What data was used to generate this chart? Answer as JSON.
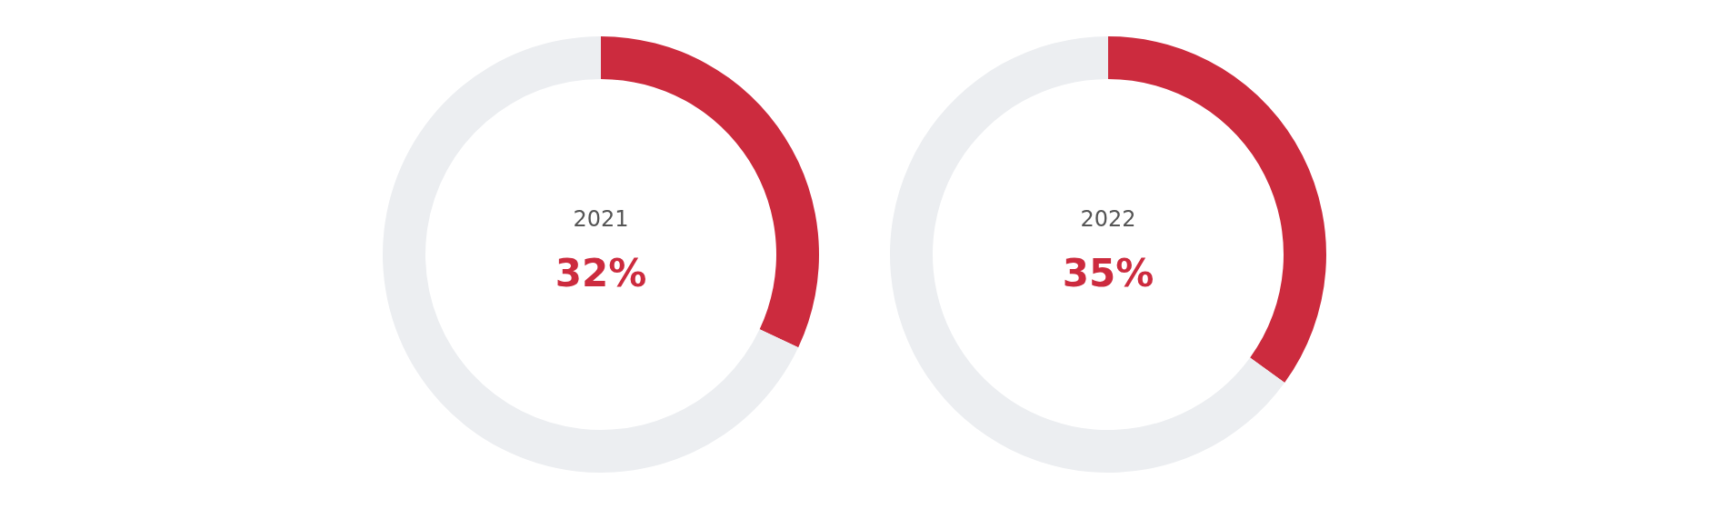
{
  "chart_data": [
    {
      "type": "donut",
      "title": "2021",
      "categories": [
        null,
        null
      ],
      "values": [
        32,
        68
      ],
      "colors": [
        "#cc2b3e",
        "#eceef1"
      ],
      "annotations": [
        "32%"
      ]
    },
    {
      "type": "donut",
      "title": "2022",
      "categories": [
        null,
        null
      ],
      "values": [
        35,
        65
      ],
      "colors": [
        "#cc2b3e",
        "#eceef1"
      ],
      "annotations": [
        "35%"
      ]
    }
  ]
}
